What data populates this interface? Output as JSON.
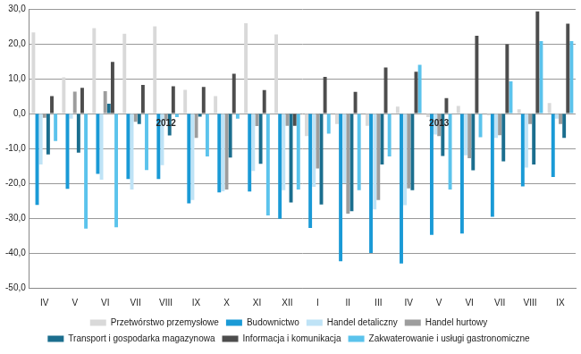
{
  "chart_data": {
    "type": "bar",
    "categories": [
      "IV",
      "V",
      "VI",
      "VII",
      "VIII",
      "IX",
      "X",
      "XI",
      "XII",
      "I",
      "II",
      "III",
      "IV",
      "V",
      "VI",
      "VII",
      "VIII",
      "IX"
    ],
    "series": [
      {
        "name": "Przetwórstwo przemysłowe",
        "color": "#d9d9d9",
        "values": [
          23.3,
          10.4,
          24.5,
          22.9,
          25.0,
          6.8,
          5.0,
          25.9,
          22.7,
          -6.5,
          -3.0,
          -3.5,
          2.0,
          -1.0,
          2.2,
          -0.5,
          1.2,
          3.0
        ]
      },
      {
        "name": "Budownictwo",
        "color": "#1a9ad6",
        "values": [
          -26.2,
          -21.6,
          -17.3,
          -18.8,
          -18.8,
          -25.8,
          -22.6,
          -22.4,
          -30.2,
          -32.8,
          -42.4,
          -40.0,
          -43.0,
          -34.8,
          -34.4,
          -29.6,
          -20.9,
          -18.2
        ]
      },
      {
        "name": "Handel detaliczny",
        "color": "#bfe3f6",
        "values": [
          -14.6,
          -1.5,
          -19.0,
          -21.8,
          -14.8,
          -24.8,
          -22.3,
          -16.5,
          -22.0,
          -21.0,
          -20.0,
          -27.5,
          -26.3,
          -6.0,
          -12.0,
          -7.0,
          -15.5,
          -1.5
        ]
      },
      {
        "name": "Handel hurtowy",
        "color": "#9d9d9d",
        "values": [
          -1.2,
          6.3,
          6.4,
          -2.4,
          -2.0,
          -7.0,
          -21.8,
          -3.6,
          -3.5,
          -15.8,
          -28.7,
          -24.8,
          -21.5,
          -6.5,
          -12.8,
          -6.2,
          -3.0,
          -3.0
        ]
      },
      {
        "name": "Transport i gospodarka magazynowa",
        "color": "#1b6e8e",
        "values": [
          -11.7,
          -11.2,
          2.8,
          -3.0,
          -6.3,
          -0.9,
          -12.6,
          -14.4,
          -25.5,
          -26.1,
          -28.0,
          -14.6,
          -22.0,
          -12.2,
          -16.3,
          -13.7,
          -14.6,
          -7.0
        ]
      },
      {
        "name": "Informacja i komunikacja",
        "color": "#4d4d4d",
        "values": [
          5.0,
          7.4,
          14.8,
          8.2,
          7.8,
          7.6,
          11.4,
          6.7,
          -3.5,
          10.5,
          6.2,
          13.2,
          12.0,
          4.4,
          22.3,
          19.9,
          29.3,
          25.8
        ]
      },
      {
        "name": "Zakwaterowanie i usługi gastronomiczne",
        "color": "#5bc3ec",
        "values": [
          -7.9,
          -33.0,
          -32.6,
          -16.2,
          -1.0,
          -12.3,
          -1.5,
          -29.2,
          -21.8,
          -5.8,
          -22.0,
          -12.3,
          14.0,
          -21.8,
          -6.8,
          9.2,
          20.8,
          20.8
        ]
      }
    ],
    "annotations": [
      {
        "text": "2012",
        "x": 4,
        "y": -3
      },
      {
        "text": "2013",
        "x": 13,
        "y": -3
      }
    ],
    "ylim": [
      -50,
      30
    ],
    "yticks": [
      {
        "value": -50,
        "label": "-50,0"
      },
      {
        "value": -40,
        "label": "-40,0"
      },
      {
        "value": -30,
        "label": "-30,0"
      },
      {
        "value": -20,
        "label": "-20,0"
      },
      {
        "value": -10,
        "label": "-10,0"
      },
      {
        "value": 0,
        "label": "0,0"
      },
      {
        "value": 10,
        "label": "10,0"
      },
      {
        "value": 20,
        "label": "20,0"
      },
      {
        "value": 30,
        "label": "30,0"
      }
    ],
    "grid": true,
    "legend": "bottom"
  }
}
